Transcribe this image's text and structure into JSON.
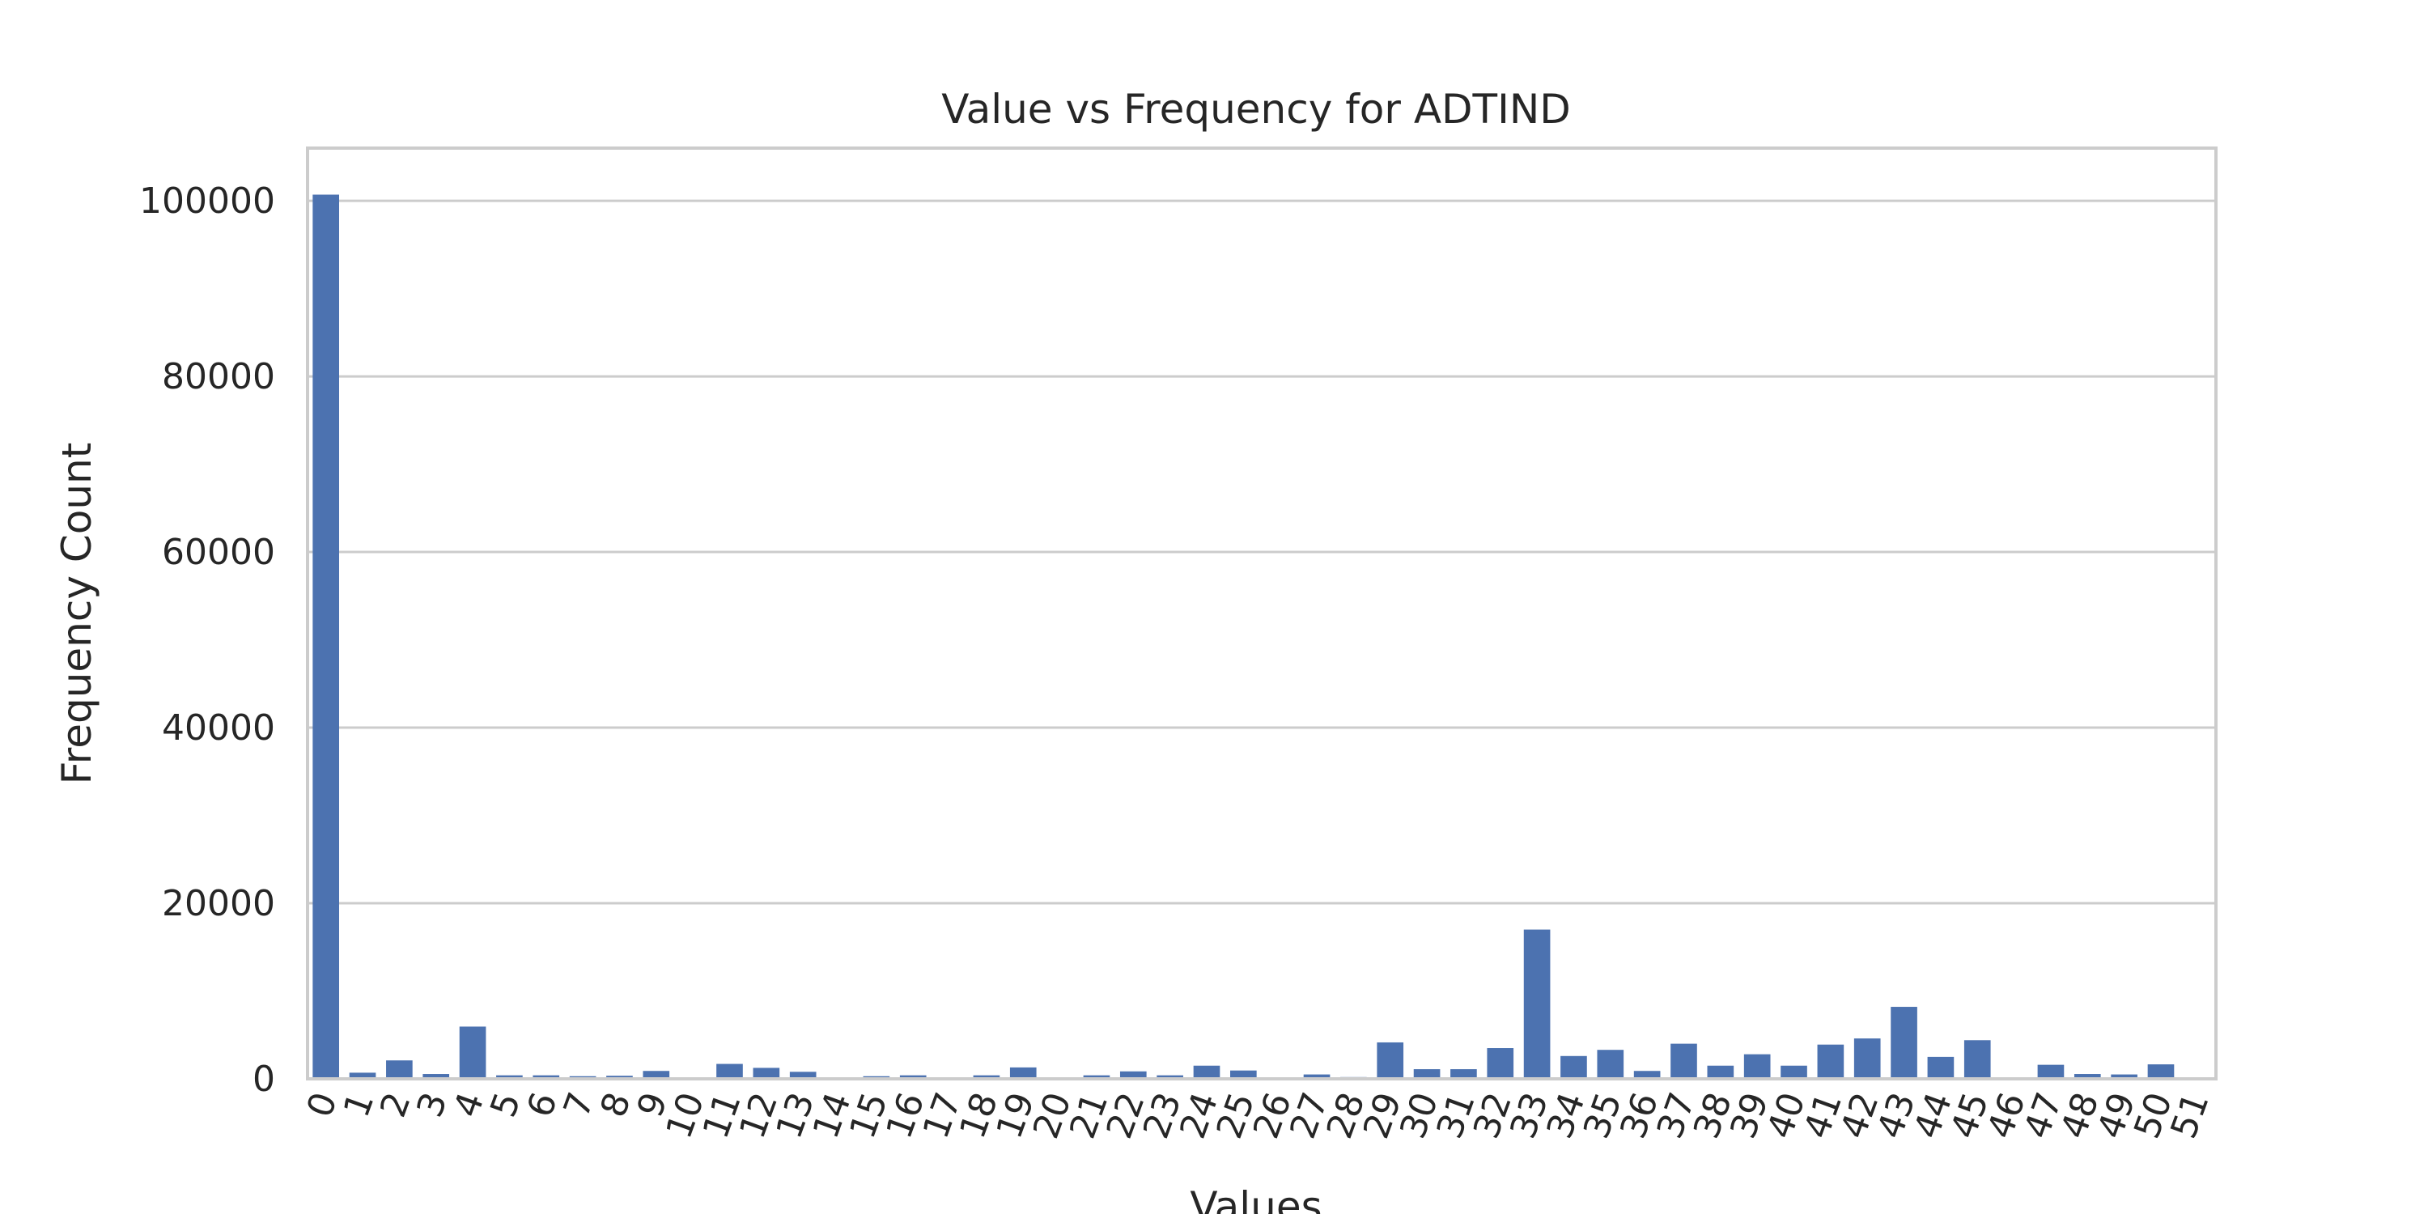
{
  "chart_data": {
    "type": "bar",
    "title": "Value vs Frequency for ADTIND",
    "xlabel": "Values",
    "ylabel": "Frequency Count",
    "ylim": [
      0,
      106000
    ],
    "yticks": [
      0,
      20000,
      40000,
      60000,
      80000,
      100000
    ],
    "grid": true,
    "categories": [
      "0",
      "1",
      "2",
      "3",
      "4",
      "5",
      "6",
      "7",
      "8",
      "9",
      "10",
      "11",
      "12",
      "13",
      "14",
      "15",
      "16",
      "17",
      "18",
      "19",
      "20",
      "21",
      "22",
      "23",
      "24",
      "25",
      "26",
      "27",
      "28",
      "29",
      "30",
      "31",
      "32",
      "33",
      "34",
      "35",
      "36",
      "37",
      "38",
      "39",
      "40",
      "41",
      "42",
      "43",
      "44",
      "45",
      "46",
      "47",
      "48",
      "49",
      "50",
      "51"
    ],
    "values": [
      100700,
      700,
      2100,
      550,
      5950,
      400,
      400,
      300,
      350,
      900,
      50,
      1700,
      1250,
      800,
      50,
      300,
      400,
      100,
      400,
      1300,
      150,
      400,
      850,
      400,
      1500,
      950,
      100,
      500,
      200,
      4150,
      1100,
      1100,
      3500,
      17000,
      2600,
      3300,
      900,
      4000,
      1500,
      2800,
      1500,
      3900,
      4600,
      8200,
      2500,
      4400,
      150,
      1600,
      550,
      500,
      1650,
      50
    ]
  }
}
